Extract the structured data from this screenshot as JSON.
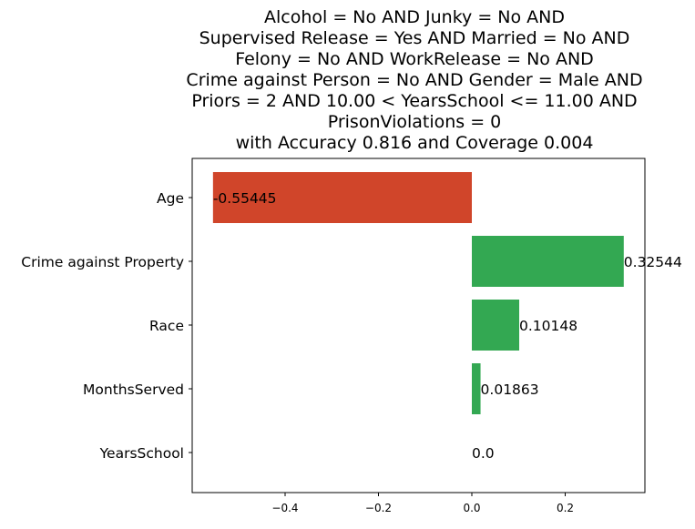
{
  "chart_data": {
    "type": "bar",
    "orientation": "horizontal",
    "title_lines": [
      "Alcohol = No AND Junky = No AND",
      "Supervised Release = Yes AND Married = No AND",
      "Felony = No AND WorkRelease = No AND",
      "Crime against Person = No AND Gender = Male AND",
      "Priors = 2 AND 10.00 < YearsSchool <= 11.00 AND",
      "PrisonViolations = 0",
      "with Accuracy 0.816 and Coverage 0.004"
    ],
    "categories": [
      "Age",
      "Crime against Property",
      "Race",
      "MonthsServed",
      "YearsSchool"
    ],
    "values": [
      -0.55445,
      0.32544,
      0.10148,
      0.01863,
      0.0
    ],
    "value_labels": [
      "-0.55445",
      "0.32544",
      "0.10148",
      "0.01863",
      "0.0"
    ],
    "xticks": [
      -0.4,
      -0.2,
      0.0,
      0.2
    ],
    "xtick_labels": [
      "−0.4",
      "−0.2",
      "0.0",
      "0.2"
    ],
    "xlim": [
      -0.6,
      0.37
    ],
    "xlabel": "",
    "ylabel": "",
    "colors": {
      "positive": "#33a852",
      "negative": "#d0452a"
    },
    "grid": false,
    "legend": false
  }
}
